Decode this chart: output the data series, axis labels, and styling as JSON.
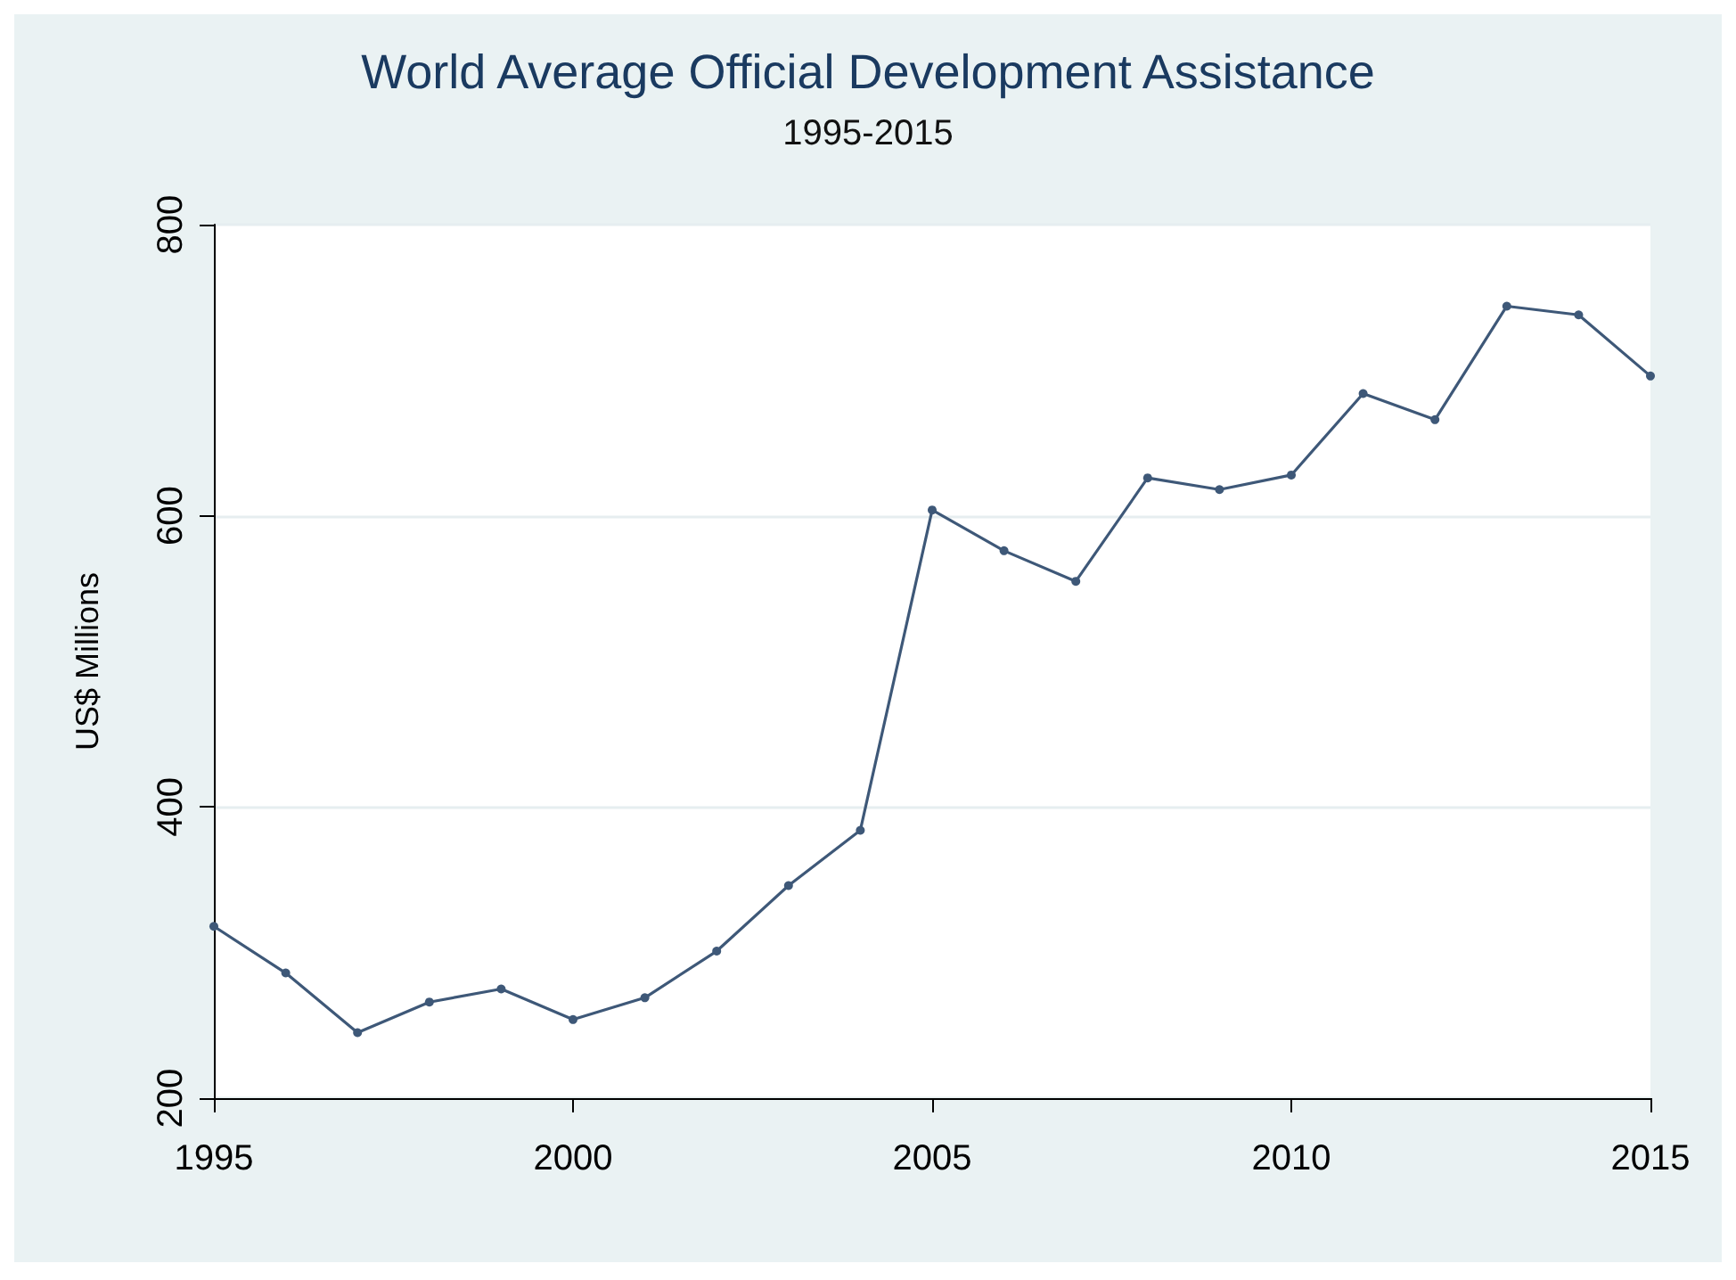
{
  "chart_data": {
    "type": "line",
    "title": "World Average Official Development Assistance",
    "subtitle": "1995-2015",
    "ylabel": "US$ Millions",
    "x": [
      1995,
      1996,
      1997,
      1998,
      1999,
      2000,
      2001,
      2002,
      2003,
      2004,
      2005,
      2006,
      2007,
      2008,
      2009,
      2010,
      2011,
      2012,
      2013,
      2014,
      2015
    ],
    "series": [
      {
        "color": "#3e5878",
        "values": [
          318,
          286,
          245,
          266,
          275,
          254,
          269,
          301,
          346,
          384,
          604,
          576,
          555,
          626,
          618,
          628,
          684,
          666,
          744,
          738,
          696
        ]
      }
    ],
    "xlim": [
      1995,
      2015
    ],
    "xticks": [
      1995,
      2000,
      2005,
      2010,
      2015
    ],
    "ylim": [
      200,
      800
    ],
    "yticks": [
      200,
      400,
      600,
      800
    ],
    "grid": "y",
    "marker": "circle",
    "line_style": "solid"
  }
}
